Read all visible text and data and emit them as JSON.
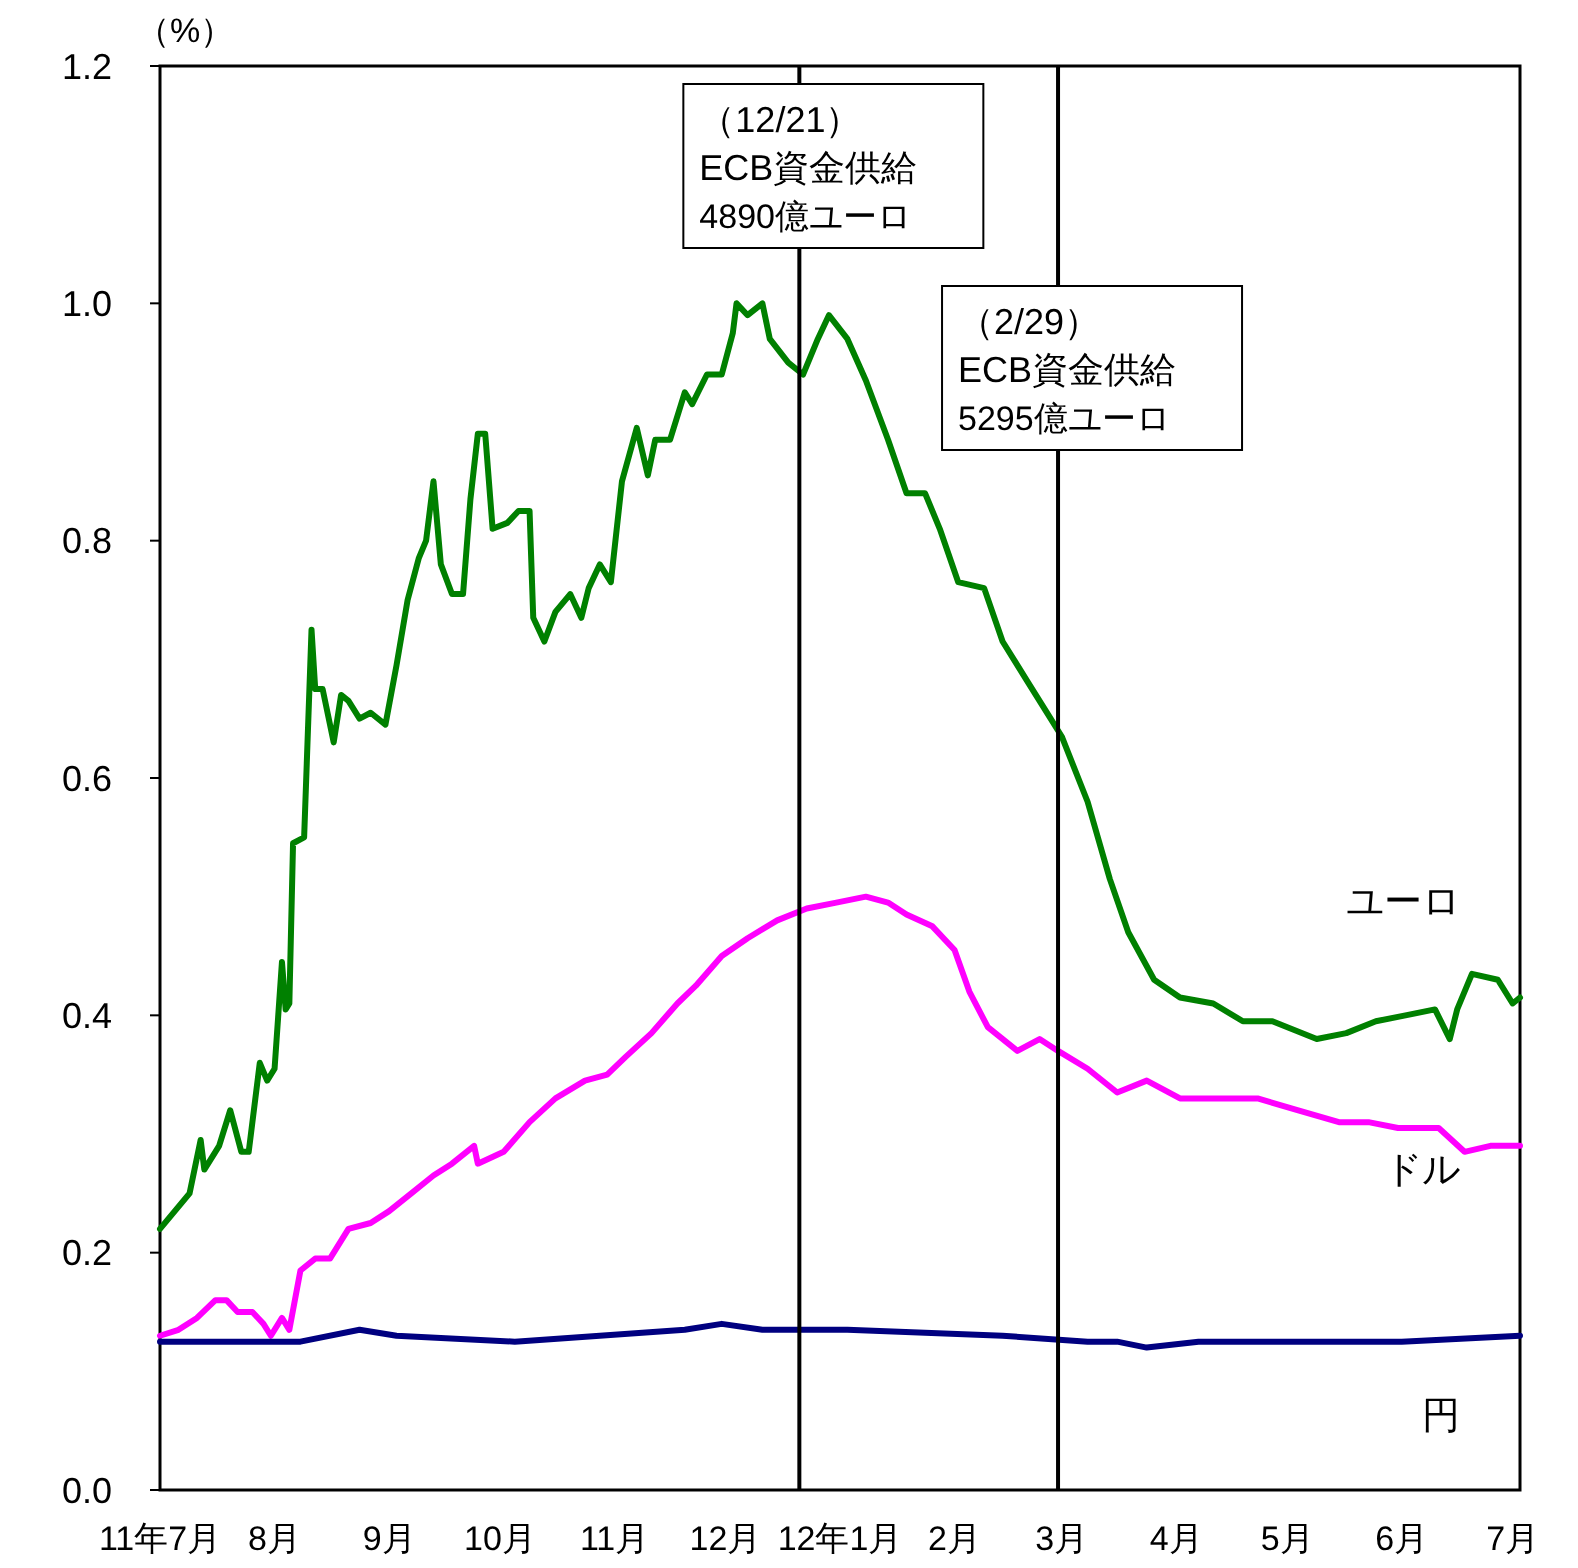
{
  "chart_data": {
    "type": "line",
    "ylabel": "（%）",
    "xlim": [
      "2011-07-01",
      "2012-07-03"
    ],
    "xticks": [
      {
        "value": "2011-07-01",
        "label": "11年7月"
      },
      {
        "value": "2011-08-01",
        "label": "8月"
      },
      {
        "value": "2011-09-01",
        "label": "9月"
      },
      {
        "value": "2011-10-01",
        "label": "10月"
      },
      {
        "value": "2011-11-01",
        "label": "11月"
      },
      {
        "value": "2011-12-01",
        "label": "12月"
      },
      {
        "value": "2012-01-01",
        "label": "12年1月"
      },
      {
        "value": "2012-02-01",
        "label": "2月"
      },
      {
        "value": "2012-03-01",
        "label": "3月"
      },
      {
        "value": "2012-04-01",
        "label": "4月"
      },
      {
        "value": "2012-05-01",
        "label": "5月"
      },
      {
        "value": "2012-06-01",
        "label": "6月"
      },
      {
        "value": "2012-07-01",
        "label": "7月"
      }
    ],
    "ylim": [
      0,
      1.2
    ],
    "yticks": [
      {
        "value": 0,
        "label": "0.0"
      },
      0.2,
      0.4,
      0.6,
      0.8,
      {
        "value": 1,
        "label": "1.0"
      },
      1.2
    ],
    "ref_lines": [
      {
        "axis": "x",
        "value": "2011-12-21",
        "label": "（12/21）\nECB資金供給\n4890億ユーロ",
        "color": "#000000"
      },
      {
        "axis": "x",
        "value": "2012-02-29",
        "label": "（2/29）\nECB資金供給\n5295億ユーロ",
        "color": "#000000"
      }
    ],
    "series": [
      {
        "name": "ユーロ",
        "color": "#008000",
        "x": [
          "2011-07-01",
          "2011-07-05",
          "2011-07-09",
          "2011-07-12",
          "2011-07-13",
          "2011-07-17",
          "2011-07-20",
          "2011-07-23",
          "2011-07-25",
          "2011-07-28",
          "2011-07-30",
          "2011-08-01",
          "2011-08-03",
          "2011-08-04",
          "2011-08-05",
          "2011-08-06",
          "2011-08-09",
          "2011-08-11",
          "2011-08-12",
          "2011-08-14",
          "2011-08-17",
          "2011-08-19",
          "2011-08-21",
          "2011-08-24",
          "2011-08-27",
          "2011-08-31",
          "2011-09-03",
          "2011-09-06",
          "2011-09-09",
          "2011-09-11",
          "2011-09-13",
          "2011-09-15",
          "2011-09-18",
          "2011-09-21",
          "2011-09-23",
          "2011-09-25",
          "2011-09-27",
          "2011-09-29",
          "2011-10-03",
          "2011-10-06",
          "2011-10-09",
          "2011-10-10",
          "2011-10-13",
          "2011-10-16",
          "2011-10-20",
          "2011-10-23",
          "2011-10-25",
          "2011-10-28",
          "2011-10-31",
          "2011-11-03",
          "2011-11-07",
          "2011-11-10",
          "2011-11-12",
          "2011-11-16",
          "2011-11-20",
          "2011-11-22",
          "2011-11-26",
          "2011-11-30",
          "2011-12-03",
          "2011-12-04",
          "2011-12-07",
          "2011-12-11",
          "2011-12-13",
          "2011-12-18",
          "2011-12-22",
          "2011-12-26",
          "2011-12-29",
          "2012-01-03",
          "2012-01-08",
          "2012-01-14",
          "2012-01-19",
          "2012-01-24",
          "2012-01-28",
          "2012-02-02",
          "2012-02-09",
          "2012-02-14",
          "2012-02-21",
          "2012-02-27",
          "2012-03-01",
          "2012-03-08",
          "2012-03-14",
          "2012-03-19",
          "2012-03-26",
          "2012-04-02",
          "2012-04-11",
          "2012-04-19",
          "2012-04-27",
          "2012-05-09",
          "2012-05-17",
          "2012-05-25",
          "2012-06-02",
          "2012-06-10",
          "2012-06-14",
          "2012-06-16",
          "2012-06-20",
          "2012-06-27",
          "2012-07-01",
          "2012-07-03"
        ],
        "values": [
          0.22,
          0.235,
          0.25,
          0.295,
          0.27,
          0.29,
          0.32,
          0.285,
          0.285,
          0.36,
          0.345,
          0.355,
          0.445,
          0.405,
          0.41,
          0.545,
          0.55,
          0.725,
          0.675,
          0.675,
          0.63,
          0.67,
          0.665,
          0.65,
          0.655,
          0.645,
          0.695,
          0.75,
          0.785,
          0.8,
          0.85,
          0.78,
          0.755,
          0.755,
          0.835,
          0.89,
          0.89,
          0.81,
          0.815,
          0.825,
          0.825,
          0.735,
          0.715,
          0.74,
          0.755,
          0.735,
          0.76,
          0.78,
          0.765,
          0.85,
          0.895,
          0.855,
          0.885,
          0.885,
          0.925,
          0.915,
          0.94,
          0.94,
          0.975,
          1.0,
          0.99,
          1.0,
          0.97,
          0.95,
          0.94,
          0.97,
          0.99,
          0.97,
          0.935,
          0.885,
          0.84,
          0.84,
          0.81,
          0.765,
          0.76,
          0.715,
          0.68,
          0.65,
          0.635,
          0.58,
          0.515,
          0.47,
          0.43,
          0.415,
          0.41,
          0.395,
          0.395,
          0.38,
          0.385,
          0.395,
          0.4,
          0.405,
          0.38,
          0.405,
          0.435,
          0.43,
          0.41,
          0.415
        ]
      },
      {
        "name": "ドル",
        "color": "#ff00ff",
        "x": [
          "2011-07-01",
          "2011-07-06",
          "2011-07-11",
          "2011-07-16",
          "2011-07-19",
          "2011-07-22",
          "2011-07-26",
          "2011-07-29",
          "2011-07-31",
          "2011-08-03",
          "2011-08-05",
          "2011-08-08",
          "2011-08-12",
          "2011-08-16",
          "2011-08-21",
          "2011-08-27",
          "2011-09-01",
          "2011-09-07",
          "2011-09-13",
          "2011-09-18",
          "2011-09-24",
          "2011-09-25",
          "2011-10-02",
          "2011-10-09",
          "2011-10-16",
          "2011-10-24",
          "2011-10-30",
          "2011-11-04",
          "2011-11-11",
          "2011-11-18",
          "2011-11-23",
          "2011-11-30",
          "2011-12-07",
          "2011-12-15",
          "2011-12-23",
          "2011-12-31",
          "2012-01-08",
          "2012-01-14",
          "2012-01-19",
          "2012-01-26",
          "2012-02-01",
          "2012-02-05",
          "2012-02-10",
          "2012-02-18",
          "2012-02-24",
          "2012-02-29",
          "2012-03-08",
          "2012-03-16",
          "2012-03-24",
          "2012-04-02",
          "2012-04-12",
          "2012-04-23",
          "2012-05-04",
          "2012-05-15",
          "2012-05-23",
          "2012-05-31",
          "2012-06-11",
          "2012-06-18",
          "2012-06-25",
          "2012-07-03"
        ],
        "values": [
          0.13,
          0.135,
          0.145,
          0.16,
          0.16,
          0.15,
          0.15,
          0.14,
          0.13,
          0.145,
          0.135,
          0.185,
          0.195,
          0.195,
          0.22,
          0.225,
          0.235,
          0.25,
          0.265,
          0.275,
          0.29,
          0.275,
          0.285,
          0.31,
          0.33,
          0.345,
          0.35,
          0.365,
          0.385,
          0.41,
          0.425,
          0.45,
          0.465,
          0.48,
          0.49,
          0.495,
          0.5,
          0.495,
          0.485,
          0.475,
          0.455,
          0.42,
          0.39,
          0.37,
          0.38,
          0.37,
          0.355,
          0.335,
          0.345,
          0.33,
          0.33,
          0.33,
          0.32,
          0.31,
          0.31,
          0.305,
          0.305,
          0.285,
          0.29,
          0.29
        ]
      },
      {
        "name": "円",
        "color": "#000080",
        "x": [
          "2011-07-01",
          "2011-08-08",
          "2011-08-24",
          "2011-09-03",
          "2011-10-05",
          "2011-10-28",
          "2011-11-20",
          "2011-11-30",
          "2011-12-11",
          "2012-01-03",
          "2012-02-14",
          "2012-03-08",
          "2012-03-16",
          "2012-03-24",
          "2012-04-07",
          "2012-06-01",
          "2012-07-03"
        ],
        "values": [
          0.125,
          0.125,
          0.135,
          0.13,
          0.125,
          0.13,
          0.135,
          0.14,
          0.135,
          0.135,
          0.13,
          0.125,
          0.125,
          0.12,
          0.125,
          0.125,
          0.13
        ]
      }
    ]
  }
}
